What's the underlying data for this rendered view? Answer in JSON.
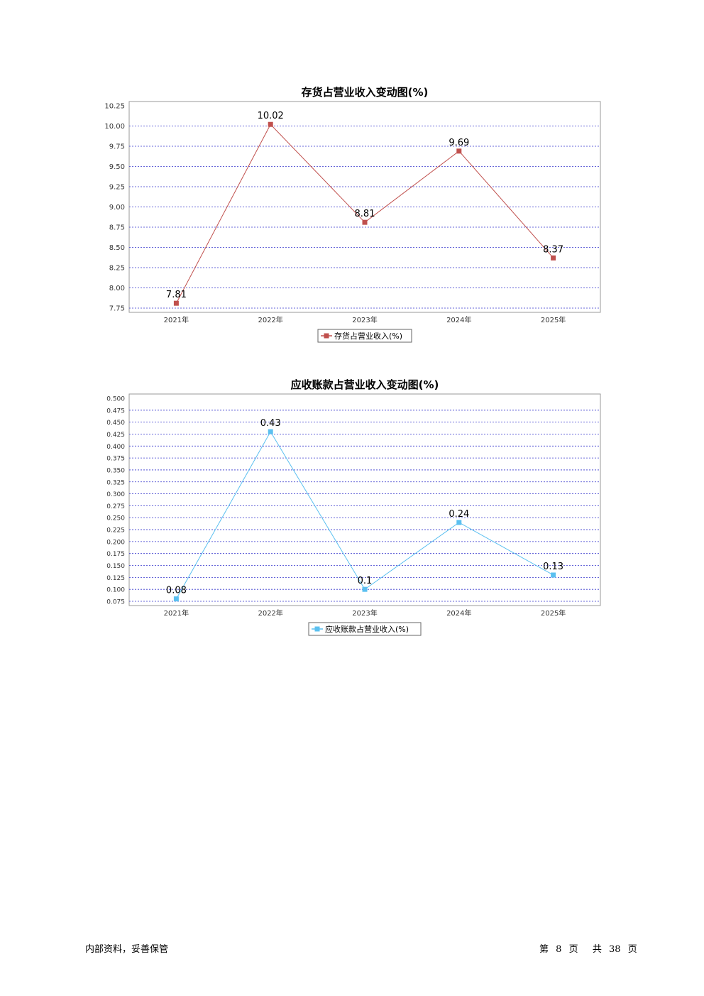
{
  "chart_data": [
    {
      "type": "line",
      "title": "存货占营业收入变动图(%)",
      "categories": [
        "2021年",
        "2022年",
        "2023年",
        "2024年",
        "2025年"
      ],
      "series": [
        {
          "name": "存货占营业收入(%)",
          "values": [
            7.81,
            10.02,
            8.81,
            9.69,
            8.37
          ],
          "labels": [
            "7.81",
            "10.02",
            "8.81",
            "9.69",
            "8.37"
          ],
          "color": "#c0504d"
        }
      ],
      "yticks": [
        "10.25",
        "10.00",
        "9.75",
        "9.50",
        "9.25",
        "9.00",
        "8.75",
        "8.50",
        "8.25",
        "8.00",
        "7.75"
      ],
      "ylim": [
        7.75,
        10.25
      ],
      "grid": true,
      "legend": "bottom"
    },
    {
      "type": "line",
      "title": "应收账款占营业收入变动图(%)",
      "categories": [
        "2021年",
        "2022年",
        "2023年",
        "2024年",
        "2025年"
      ],
      "series": [
        {
          "name": "应收账款占营业收入(%)",
          "values": [
            0.08,
            0.43,
            0.1,
            0.24,
            0.13
          ],
          "labels": [
            "0.08",
            "0.43",
            "0.1",
            "0.24",
            "0.13"
          ],
          "color": "#5bc0f0"
        }
      ],
      "yticks": [
        "0.500",
        "0.475",
        "0.450",
        "0.425",
        "0.400",
        "0.375",
        "0.350",
        "0.325",
        "0.300",
        "0.275",
        "0.250",
        "0.225",
        "0.200",
        "0.175",
        "0.150",
        "0.125",
        "0.100",
        "0.075"
      ],
      "ylim": [
        0.075,
        0.5
      ],
      "grid": true,
      "legend": "bottom"
    }
  ],
  "footer": {
    "left": "内部资料，妥善保管",
    "page_prefix": "第",
    "page_current": "8",
    "page_unit": "页",
    "total_prefix": "共",
    "page_total": "38",
    "total_unit": "页"
  }
}
